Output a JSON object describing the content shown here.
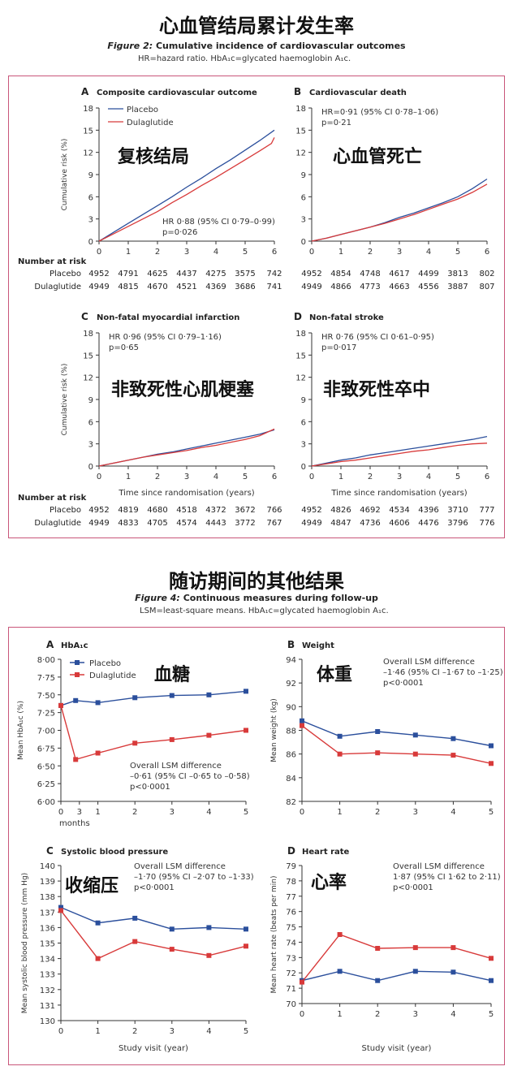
{
  "fig2": {
    "cn_title": "心血管结局累计发生率",
    "caption_label": "Figure 2:",
    "caption_text": "Cumulative incidence of cardiovascular outcomes",
    "subcaption": "HR=hazard ratio. HbA₁c=glycated haemoglobin A₁c.",
    "risk_title": "Number at risk",
    "time_label": "Time since randomisation (years)",
    "ylabel": "Cumulative risk (%)"
  },
  "fig4": {
    "cn_title": "随访期间的其他结果",
    "caption_label": "Figure 4:",
    "caption_text": "Continuous measures during follow-up",
    "subcaption": "LSM=least-square means. HbA₁c=glycated haemoglobin A₁c.",
    "study_visit_label": "Study visit (year)",
    "months_label": "months"
  },
  "legend": {
    "placebo": "Placebo",
    "dulaglutide": "Dulaglutide"
  },
  "colors": {
    "placebo": "#2b4f9c",
    "dulaglutide": "#d83a3a",
    "border": "#c9567a"
  },
  "chart_data": [
    {
      "id": "A",
      "type": "line",
      "letter": "A",
      "title": "Composite cardiovascular outcome",
      "cn_label": "复核结局",
      "ylim": [
        0,
        18
      ],
      "yticks": [
        0,
        3,
        6,
        9,
        12,
        15,
        18
      ],
      "xlim": [
        0,
        6
      ],
      "xticks": [
        0,
        1,
        2,
        3,
        4,
        5,
        6
      ],
      "hr": "HR 0·88 (95% CI 0·79–0·99)",
      "p": "p=0·026",
      "series": [
        {
          "name": "Placebo",
          "x": [
            0,
            0.5,
            1,
            1.5,
            2,
            2.5,
            3,
            3.5,
            4,
            4.5,
            5,
            5.5,
            6
          ],
          "y": [
            0,
            1.2,
            2.4,
            3.6,
            4.8,
            6.0,
            7.3,
            8.5,
            9.8,
            11.0,
            12.3,
            13.6,
            15.0
          ]
        },
        {
          "name": "Dulaglutide",
          "x": [
            0,
            0.5,
            1,
            1.5,
            2,
            2.5,
            3,
            3.5,
            4,
            4.5,
            5,
            5.5,
            5.9,
            6
          ],
          "y": [
            0,
            1.0,
            2.0,
            3.0,
            4.0,
            5.2,
            6.3,
            7.5,
            8.6,
            9.8,
            11.0,
            12.2,
            13.2,
            14.0
          ]
        }
      ],
      "risk": {
        "placebo": [
          "4952",
          "4791",
          "4625",
          "4437",
          "4275",
          "3575",
          "742"
        ],
        "dulaglutide": [
          "4949",
          "4815",
          "4670",
          "4521",
          "4369",
          "3686",
          "741"
        ]
      }
    },
    {
      "id": "B",
      "type": "line",
      "letter": "B",
      "title": "Cardiovascular death",
      "cn_label": "心血管死亡",
      "ylim": [
        0,
        18
      ],
      "yticks": [
        0,
        3,
        6,
        9,
        12,
        15,
        18
      ],
      "xlim": [
        0,
        6
      ],
      "xticks": [
        0,
        1,
        2,
        3,
        4,
        5,
        6
      ],
      "hr": "HR=0·91 (95% CI 0·78–1·06)",
      "p": "p=0·21",
      "series": [
        {
          "name": "Placebo",
          "x": [
            0,
            0.5,
            1,
            1.5,
            2,
            2.5,
            3,
            3.5,
            4,
            4.5,
            5,
            5.5,
            6
          ],
          "y": [
            0,
            0.4,
            0.9,
            1.4,
            1.9,
            2.5,
            3.2,
            3.8,
            4.5,
            5.2,
            6.0,
            7.1,
            8.4
          ]
        },
        {
          "name": "Dulaglutide",
          "x": [
            0,
            0.5,
            1,
            1.5,
            2,
            2.5,
            3,
            3.5,
            4,
            4.5,
            5,
            5.5,
            6
          ],
          "y": [
            0,
            0.4,
            0.9,
            1.4,
            1.9,
            2.4,
            3.0,
            3.6,
            4.3,
            5.0,
            5.7,
            6.6,
            7.7
          ]
        }
      ],
      "risk": {
        "placebo": [
          "4952",
          "4854",
          "4748",
          "4617",
          "4499",
          "3813",
          "802"
        ],
        "dulaglutide": [
          "4949",
          "4866",
          "4773",
          "4663",
          "4556",
          "3887",
          "807"
        ]
      }
    },
    {
      "id": "C",
      "type": "line",
      "letter": "C",
      "title": "Non-fatal myocardial infarction",
      "cn_label": "非致死性心肌梗塞",
      "ylim": [
        0,
        18
      ],
      "yticks": [
        0,
        3,
        6,
        9,
        12,
        15,
        18
      ],
      "xlim": [
        0,
        6
      ],
      "xticks": [
        0,
        1,
        2,
        3,
        4,
        5,
        6
      ],
      "hr": "HR 0·96 (95% CI 0·79–1·16)",
      "p": "p=0·65",
      "series": [
        {
          "name": "Placebo",
          "x": [
            0,
            0.5,
            1,
            1.5,
            2,
            2.5,
            3,
            3.5,
            4,
            4.5,
            5,
            5.5,
            6
          ],
          "y": [
            0,
            0.4,
            0.8,
            1.2,
            1.6,
            1.9,
            2.3,
            2.7,
            3.1,
            3.5,
            3.9,
            4.3,
            4.9
          ]
        },
        {
          "name": "Dulaglutide",
          "x": [
            0,
            0.5,
            1,
            1.5,
            2,
            2.5,
            3,
            3.5,
            4,
            4.5,
            5,
            5.5,
            6
          ],
          "y": [
            0,
            0.4,
            0.8,
            1.2,
            1.5,
            1.8,
            2.1,
            2.5,
            2.8,
            3.2,
            3.6,
            4.1,
            5.0
          ]
        }
      ],
      "risk": {
        "placebo": [
          "4952",
          "4819",
          "4680",
          "4518",
          "4372",
          "3672",
          "766"
        ],
        "dulaglutide": [
          "4949",
          "4833",
          "4705",
          "4574",
          "4443",
          "3772",
          "767"
        ]
      }
    },
    {
      "id": "D",
      "type": "line",
      "letter": "D",
      "title": "Non-fatal stroke",
      "cn_label": "非致死性卒中",
      "ylim": [
        0,
        18
      ],
      "yticks": [
        0,
        3,
        6,
        9,
        12,
        15,
        18
      ],
      "xlim": [
        0,
        6
      ],
      "xticks": [
        0,
        1,
        2,
        3,
        4,
        5,
        6
      ],
      "hr": "HR 0·76 (95% CI 0·61–0·95)",
      "p": "p=0·017",
      "series": [
        {
          "name": "Placebo",
          "x": [
            0,
            0.5,
            1,
            1.5,
            2,
            2.5,
            3,
            3.5,
            4,
            4.5,
            5,
            5.5,
            6
          ],
          "y": [
            0,
            0.4,
            0.8,
            1.1,
            1.5,
            1.8,
            2.1,
            2.4,
            2.7,
            3.0,
            3.3,
            3.6,
            4.0
          ]
        },
        {
          "name": "Dulaglutide",
          "x": [
            0,
            0.5,
            1,
            1.5,
            2,
            2.5,
            3,
            3.5,
            4,
            4.5,
            5,
            5.5,
            6
          ],
          "y": [
            0,
            0.3,
            0.6,
            0.8,
            1.1,
            1.4,
            1.7,
            2.0,
            2.2,
            2.5,
            2.8,
            3.0,
            3.1
          ]
        }
      ],
      "risk": {
        "placebo": [
          "4952",
          "4826",
          "4692",
          "4534",
          "4396",
          "3710",
          "777"
        ],
        "dulaglutide": [
          "4949",
          "4847",
          "4736",
          "4606",
          "4476",
          "3796",
          "776"
        ]
      }
    },
    {
      "id": "E",
      "type": "line",
      "letter": "A",
      "title": "HbA₁c",
      "cn_label": "血糖",
      "ylabel": "Mean HbA₁c (%)",
      "ylim": [
        6.0,
        8.0
      ],
      "yticks": [
        6.0,
        6.25,
        6.5,
        6.75,
        7.0,
        7.25,
        7.5,
        7.75,
        8.0
      ],
      "ytick_labels": [
        "6·00",
        "6·25",
        "6·50",
        "6·75",
        "7·00",
        "7·25",
        "7·50",
        "7·75",
        "8·00"
      ],
      "x_positions": [
        0,
        0.5,
        1,
        2,
        3,
        4,
        5
      ],
      "xtick_labels": [
        "0",
        "3",
        "1",
        "2",
        "3",
        "4",
        "5"
      ],
      "lsm": [
        "Overall LSM difference",
        "–0·61 (95% CI –0·65 to –0·58)",
        "p<0·0001"
      ],
      "series": [
        {
          "name": "Placebo",
          "x": [
            0,
            0.4,
            1,
            2,
            3,
            4,
            5
          ],
          "y": [
            7.35,
            7.42,
            7.39,
            7.46,
            7.49,
            7.5,
            7.55
          ]
        },
        {
          "name": "Dulaglutide",
          "x": [
            0,
            0.4,
            1,
            2,
            3,
            4,
            5
          ],
          "y": [
            7.35,
            6.59,
            6.68,
            6.82,
            6.87,
            6.93,
            7.0
          ]
        }
      ]
    },
    {
      "id": "F",
      "type": "line",
      "letter": "B",
      "title": "Weight",
      "cn_label": "体重",
      "ylabel": "Mean weight (kg)",
      "ylim": [
        82,
        94
      ],
      "yticks": [
        82,
        84,
        86,
        88,
        90,
        92,
        94
      ],
      "ytick_labels": [
        "82",
        "84",
        "86",
        "88",
        "90",
        "92",
        "94"
      ],
      "x_positions": [
        0,
        1,
        2,
        3,
        4,
        5
      ],
      "xtick_labels": [
        "0",
        "1",
        "2",
        "3",
        "4",
        "5"
      ],
      "lsm": [
        "Overall LSM difference",
        "–1·46 (95% CI –1·67 to –1·25)",
        "p<0·0001"
      ],
      "series": [
        {
          "name": "Placebo",
          "x": [
            0,
            1,
            2,
            3,
            4,
            5
          ],
          "y": [
            88.8,
            87.5,
            87.9,
            87.6,
            87.3,
            86.7
          ]
        },
        {
          "name": "Dulaglutide",
          "x": [
            0,
            1,
            2,
            3,
            4,
            5
          ],
          "y": [
            88.4,
            86.0,
            86.1,
            86.0,
            85.9,
            85.2
          ]
        }
      ]
    },
    {
      "id": "G",
      "type": "line",
      "letter": "C",
      "title": "Systolic blood pressure",
      "cn_label": "收缩压",
      "ylabel": "Mean systolic blood pressure (mm Hg)",
      "ylim": [
        130,
        140
      ],
      "yticks": [
        130,
        131,
        132,
        133,
        134,
        135,
        136,
        137,
        138,
        139,
        140
      ],
      "ytick_labels": [
        "130",
        "131",
        "132",
        "133",
        "134",
        "135",
        "136",
        "137",
        "138",
        "139",
        "140"
      ],
      "x_positions": [
        0,
        1,
        2,
        3,
        4,
        5
      ],
      "xtick_labels": [
        "0",
        "1",
        "2",
        "3",
        "4",
        "5"
      ],
      "lsm": [
        "Overall LSM difference",
        "–1·70 (95% CI –2·07 to –1·33)",
        "p<0·0001"
      ],
      "series": [
        {
          "name": "Placebo",
          "x": [
            0,
            1,
            2,
            3,
            4,
            5
          ],
          "y": [
            137.3,
            136.3,
            136.6,
            135.9,
            136.0,
            135.9
          ]
        },
        {
          "name": "Dulaglutide",
          "x": [
            0,
            1,
            2,
            3,
            4,
            5
          ],
          "y": [
            137.1,
            134.0,
            135.1,
            134.6,
            134.2,
            134.8
          ]
        }
      ]
    },
    {
      "id": "H",
      "type": "line",
      "letter": "D",
      "title": "Heart rate",
      "cn_label": "心率",
      "ylabel": "Mean heart rate (beats per min)",
      "ylim": [
        70,
        79
      ],
      "yticks": [
        70,
        71,
        72,
        73,
        74,
        75,
        76,
        77,
        78,
        79
      ],
      "ytick_labels": [
        "70",
        "71",
        "72",
        "73",
        "74",
        "75",
        "76",
        "77",
        "78",
        "79"
      ],
      "x_positions": [
        0,
        1,
        2,
        3,
        4,
        5
      ],
      "xtick_labels": [
        "0",
        "1",
        "2",
        "3",
        "4",
        "5"
      ],
      "lsm": [
        "Overall LSM difference",
        "1·87 (95% CI 1·62 to 2·11)",
        "p<0·0001"
      ],
      "series": [
        {
          "name": "Placebo",
          "x": [
            0,
            1,
            2,
            3,
            4,
            5
          ],
          "y": [
            71.5,
            72.1,
            71.5,
            72.1,
            72.05,
            71.5
          ]
        },
        {
          "name": "Dulaglutide",
          "x": [
            0,
            1,
            2,
            3,
            4,
            5
          ],
          "y": [
            71.4,
            74.5,
            73.6,
            73.65,
            73.65,
            72.95
          ]
        }
      ]
    }
  ]
}
